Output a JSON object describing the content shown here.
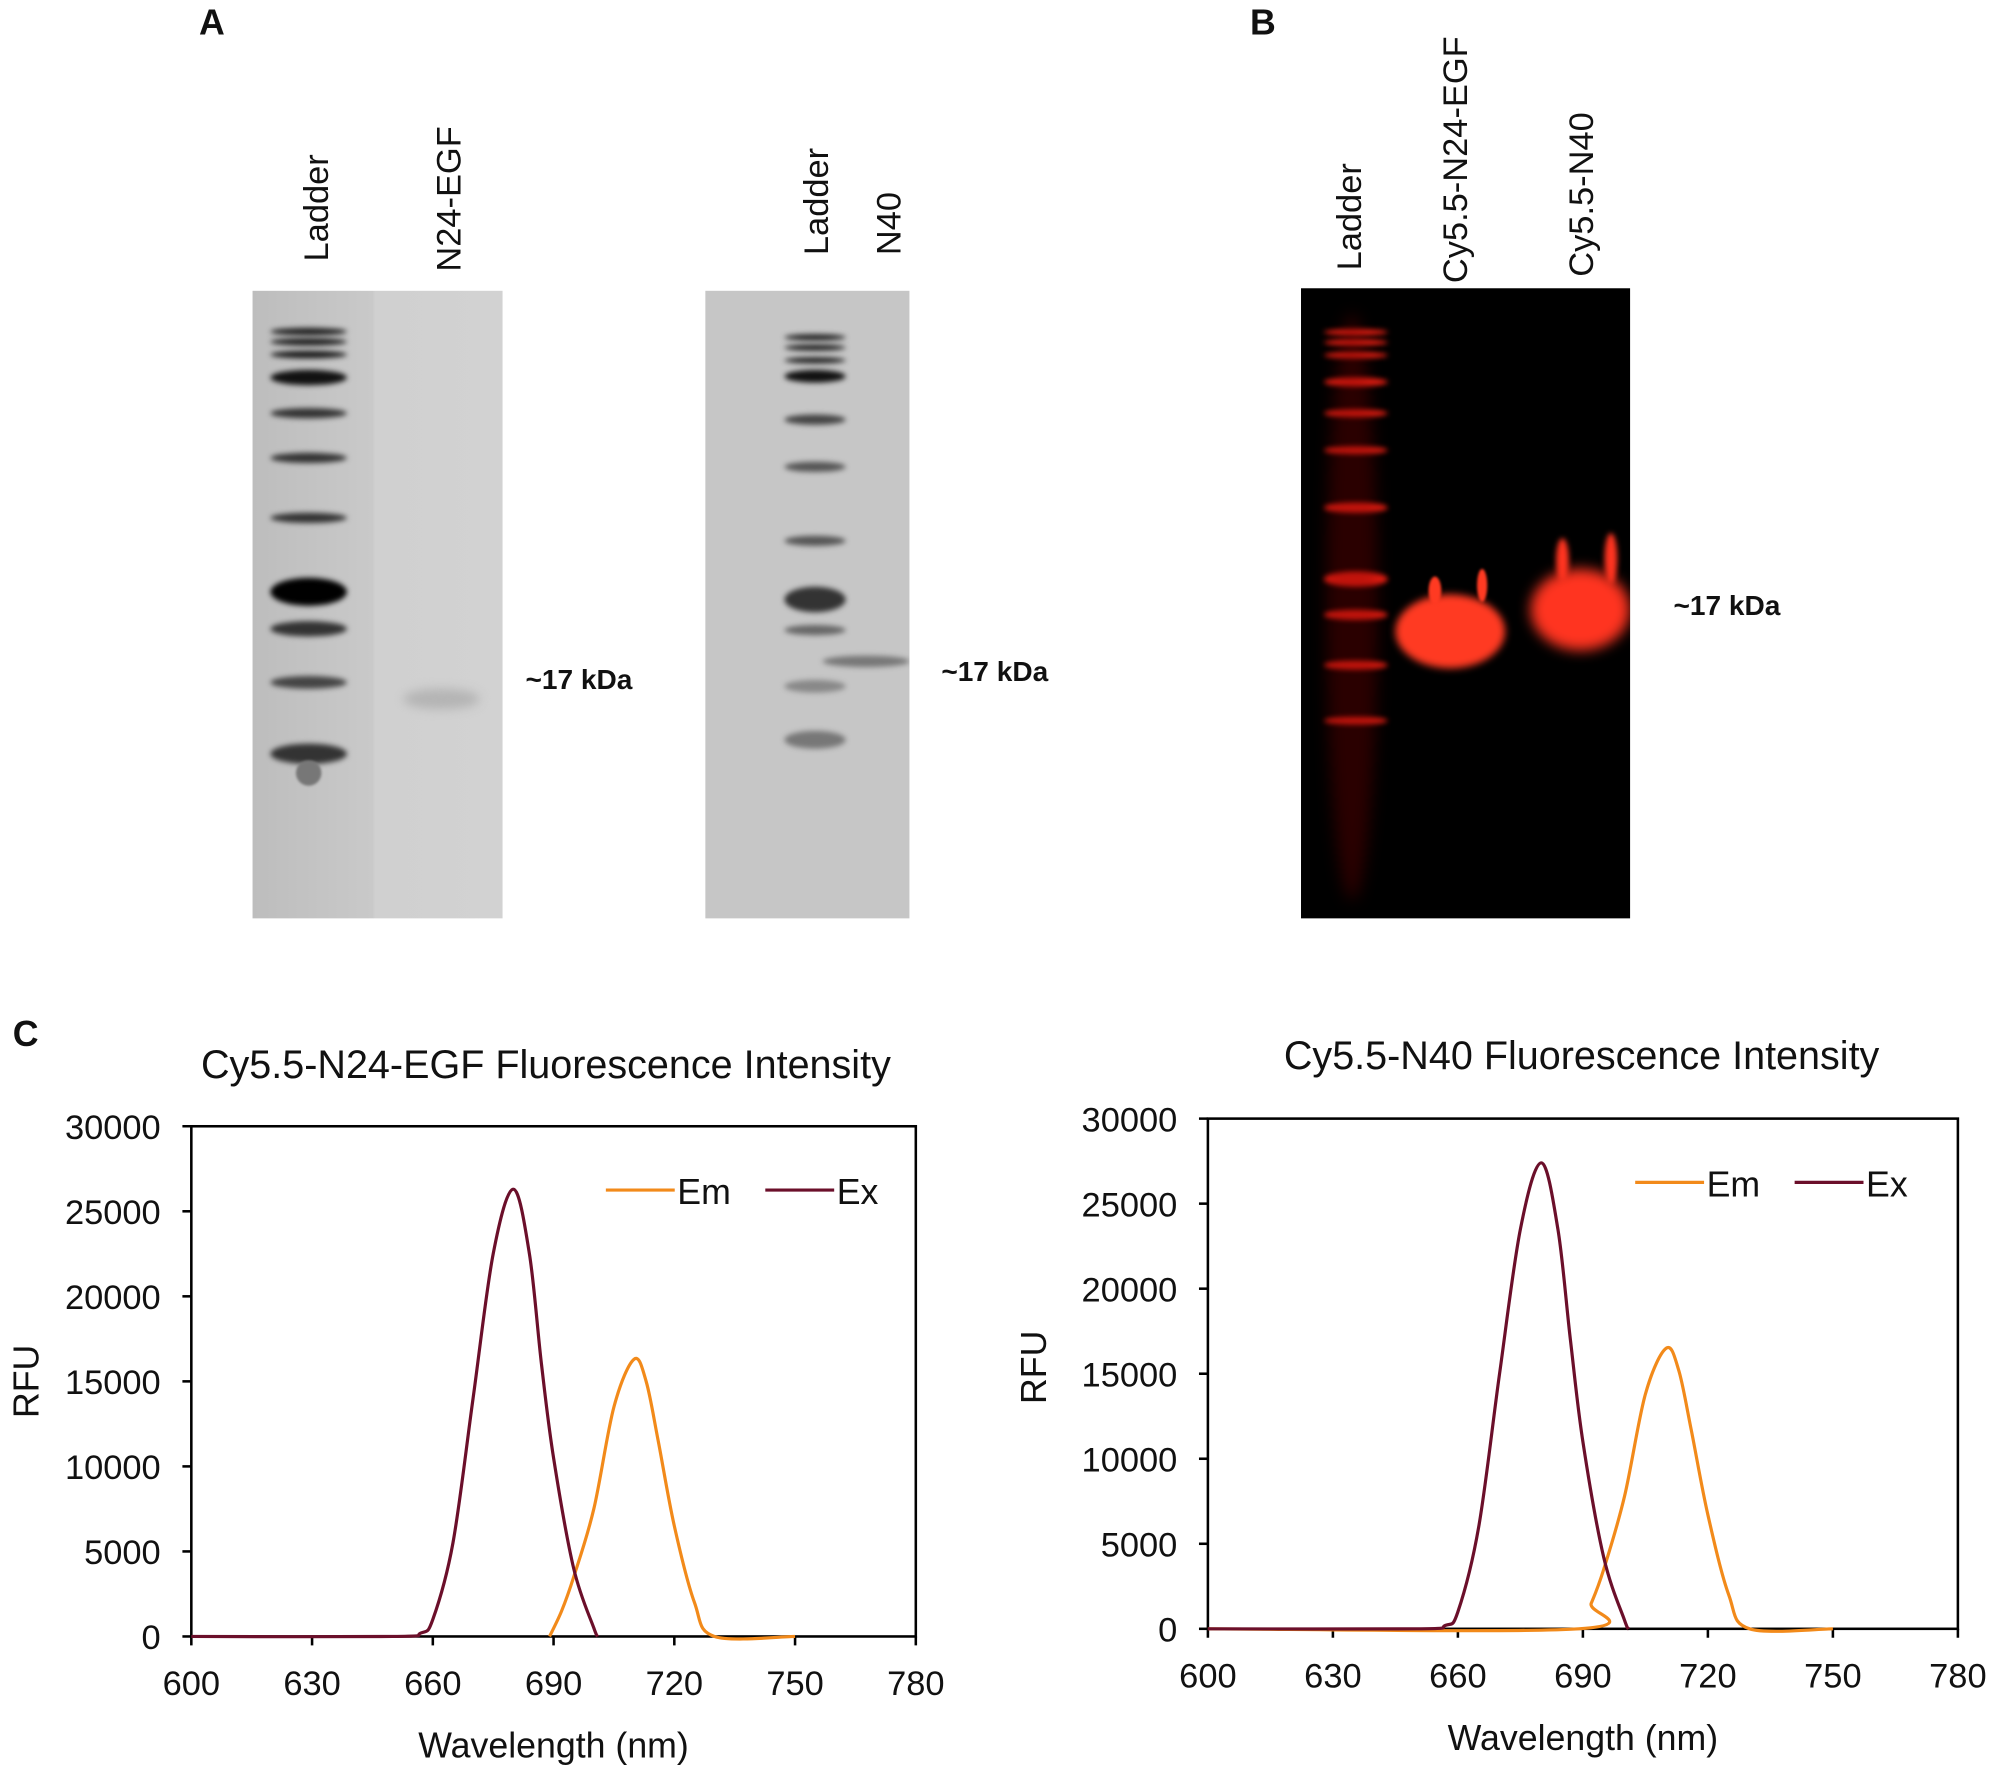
{
  "panels": {
    "a": "A",
    "b": "B",
    "c": "C"
  },
  "gel_a1": {
    "lanes": [
      "Ladder",
      "N24-EGF"
    ],
    "marker": "~17 kDa"
  },
  "gel_a2": {
    "lanes": [
      "Ladder",
      "N40"
    ],
    "marker": "~17 kDa"
  },
  "gel_b": {
    "lanes": [
      "Ladder",
      "Cy5.5-N24-EGF",
      "Cy5.5-N40"
    ],
    "marker": "~17 kDa"
  },
  "colors": {
    "em": "#f28a1a",
    "ex": "#6b0f2a",
    "gel_bg": "#c8c8c8",
    "fluor_band": "#ff2a1a"
  },
  "chart_data": [
    {
      "type": "line",
      "title": "Cy5.5-N24-EGF Fluorescence Intensity",
      "xlabel": "Wavelength (nm)",
      "ylabel": "RFU",
      "xlim": [
        600,
        780
      ],
      "ylim": [
        0,
        30000
      ],
      "xticks": [
        "600",
        "630",
        "660",
        "690",
        "720",
        "750",
        "780"
      ],
      "yticks": [
        "0",
        "5000",
        "10000",
        "15000",
        "20000",
        "25000",
        "30000"
      ],
      "legend": "top-right",
      "grid": false,
      "series": [
        {
          "name": "Em",
          "color": "#f28a1a",
          "x": [
            689,
            692,
            695,
            700,
            705,
            710,
            713,
            716,
            720,
            725,
            730,
            750
          ],
          "y": [
            0,
            1500,
            3500,
            7500,
            13500,
            16300,
            15000,
            11500,
            6500,
            2000,
            0,
            0
          ]
        },
        {
          "name": "Ex",
          "color": "#6b0f2a",
          "x": [
            600,
            650,
            657,
            660,
            665,
            670,
            675,
            680,
            684,
            687,
            690,
            695,
            700,
            701
          ],
          "y": [
            0,
            0,
            200,
            1000,
            5500,
            14000,
            22500,
            26300,
            22500,
            16000,
            10500,
            4000,
            500,
            0
          ]
        }
      ]
    },
    {
      "type": "line",
      "title": "Cy5.5-N40 Fluorescence Intensity",
      "xlabel": "Wavelength (nm)",
      "ylabel": "RFU",
      "xlim": [
        600,
        780
      ],
      "ylim": [
        0,
        30000
      ],
      "xticks": [
        "600",
        "630",
        "660",
        "690",
        "720",
        "750",
        "780"
      ],
      "yticks": [
        "0",
        "5000",
        "10000",
        "15000",
        "20000",
        "25000",
        "30000"
      ],
      "legend": "top-right",
      "grid": false,
      "series": [
        {
          "name": "Em",
          "color": "#f28a1a",
          "x": [
            600,
            689,
            692,
            695,
            700,
            705,
            710,
            713,
            716,
            720,
            725,
            730,
            750
          ],
          "y": [
            0,
            0,
            1500,
            3500,
            7800,
            13800,
            16500,
            15200,
            11700,
            6700,
            2000,
            0,
            0
          ]
        },
        {
          "name": "Ex",
          "color": "#6b0f2a",
          "x": [
            600,
            650,
            657,
            660,
            665,
            670,
            675,
            680,
            684,
            687,
            690,
            695,
            700,
            701
          ],
          "y": [
            0,
            0,
            200,
            1000,
            6000,
            15000,
            23500,
            27400,
            23500,
            17000,
            11000,
            4200,
            500,
            0
          ]
        }
      ]
    }
  ]
}
